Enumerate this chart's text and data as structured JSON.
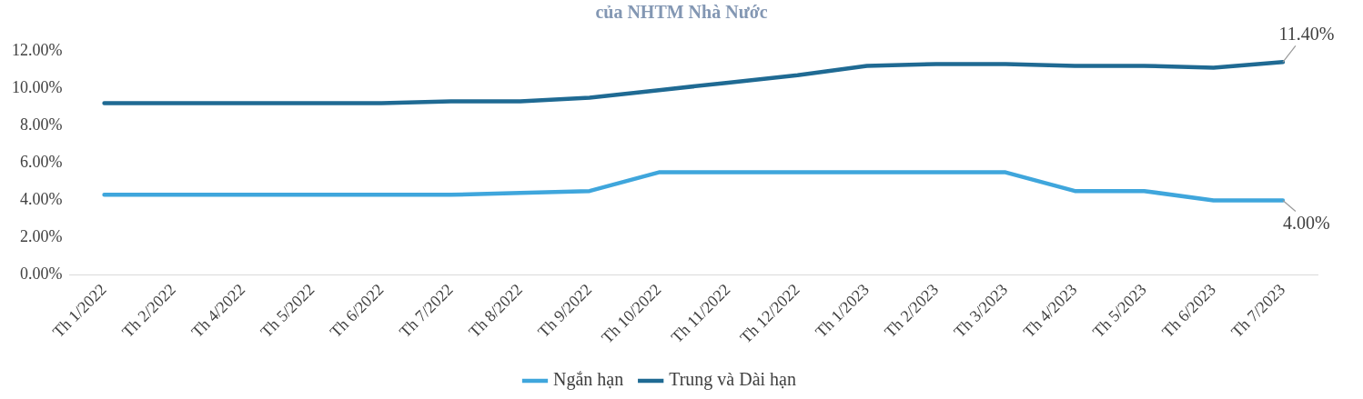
{
  "chart_data": {
    "type": "line",
    "title": "của NHTM Nhà Nước",
    "categories": [
      "Th 1/2022",
      "Th 2/2022",
      "Th 4/2022",
      "Th 5/2022",
      "Th 6/2022",
      "Th 7/2022",
      "Th 8/2022",
      "Th 9/2022",
      "Th 10/2022",
      "Th 11/2022",
      "Th 12/2022",
      "Th 1/2023",
      "Th 2/2023",
      "Th 3/2023",
      "Th 4/2023",
      "Th 5/2023",
      "Th 6/2023",
      "Th 7/2023"
    ],
    "series": [
      {
        "name": "Ngắn hạn",
        "color": "#3fa6dc",
        "values": [
          4.3,
          4.3,
          4.3,
          4.3,
          4.3,
          4.3,
          4.4,
          4.5,
          5.5,
          5.5,
          5.5,
          5.5,
          5.5,
          5.5,
          4.5,
          4.5,
          4.0,
          4.0
        ]
      },
      {
        "name": "Trung và Dài hạn",
        "color": "#1f6a93",
        "values": [
          9.2,
          9.2,
          9.2,
          9.2,
          9.2,
          9.3,
          9.3,
          9.5,
          9.9,
          10.3,
          10.7,
          11.2,
          11.3,
          11.3,
          11.2,
          11.2,
          11.1,
          11.4
        ]
      }
    ],
    "ylim": [
      0,
      12
    ],
    "yticks": [
      {
        "value": 0,
        "label": "0.00%"
      },
      {
        "value": 2,
        "label": "2.00%"
      },
      {
        "value": 4,
        "label": "4.00%"
      },
      {
        "value": 6,
        "label": "6.00%"
      },
      {
        "value": 8,
        "label": "8.00%"
      },
      {
        "value": 10,
        "label": "10.00%"
      },
      {
        "value": 12,
        "label": "12.00%"
      }
    ],
    "annotations": [
      {
        "text": "11.40%",
        "x": "Th 7/2023",
        "y": 11.4
      },
      {
        "text": "4.00%",
        "x": "Th 7/2023",
        "y": 4.0
      }
    ],
    "grid": false,
    "legend": "bottom",
    "marker": "none",
    "line_style": "solid"
  }
}
